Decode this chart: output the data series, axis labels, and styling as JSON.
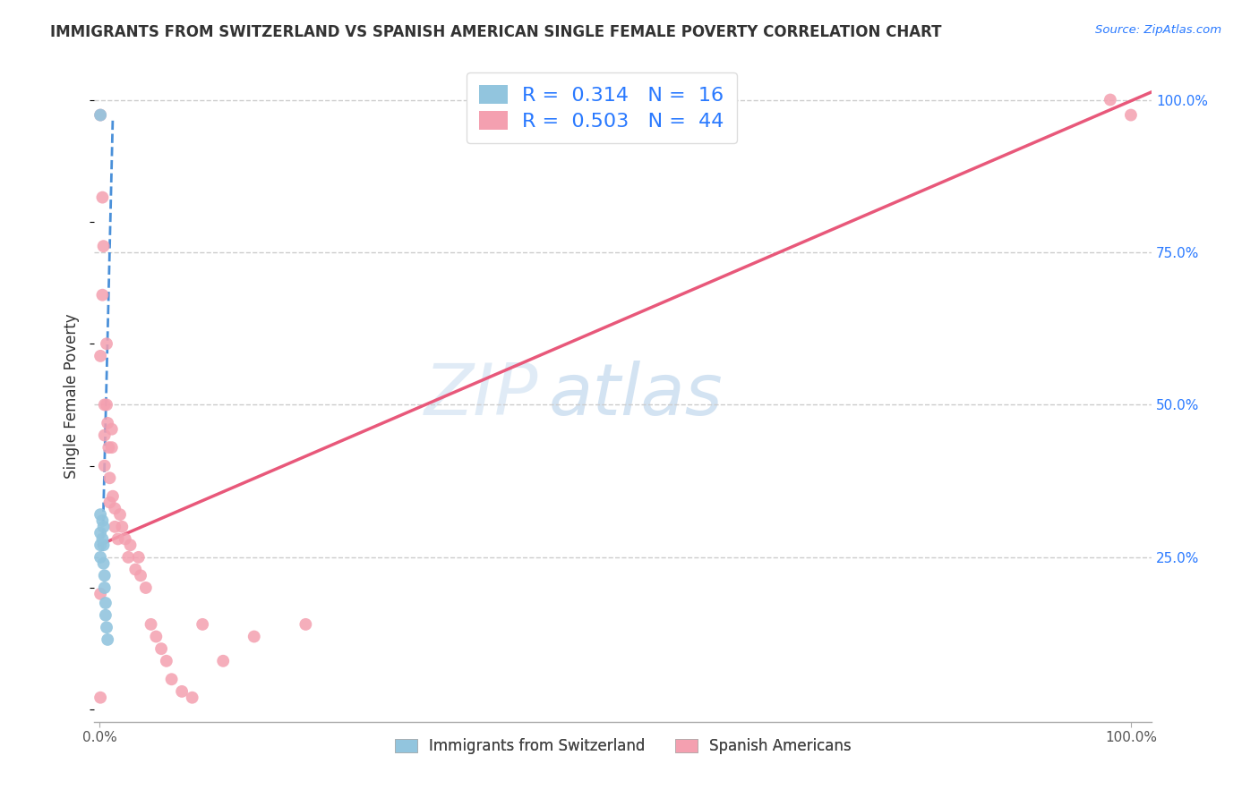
{
  "title": "IMMIGRANTS FROM SWITZERLAND VS SPANISH AMERICAN SINGLE FEMALE POVERTY CORRELATION CHART",
  "source": "Source: ZipAtlas.com",
  "ylabel": "Single Female Poverty",
  "watermark_zip": "ZIP",
  "watermark_atlas": "atlas",
  "xlim": [
    0.0,
    1.0
  ],
  "ylim": [
    0.0,
    1.0
  ],
  "swiss_color": "#92C5DE",
  "spanish_color": "#F4A0B0",
  "swiss_line_color": "#4A90D9",
  "spanish_line_color": "#E8587A",
  "swiss_R": 0.314,
  "swiss_N": 16,
  "spanish_R": 0.503,
  "spanish_N": 44,
  "background_color": "#FFFFFF",
  "grid_color": "#CCCCCC",
  "label_color": "#2979FF",
  "title_color": "#333333",
  "swiss_line_x": [
    0.003,
    0.012
  ],
  "swiss_line_y": [
    0.28,
    0.95
  ],
  "spanish_line_x": [
    0.0,
    1.0
  ],
  "spanish_line_y": [
    0.28,
    1.0
  ],
  "swiss_scatter_x": [
    0.001,
    0.001,
    0.001,
    0.001,
    0.001,
    0.003,
    0.003,
    0.004,
    0.004,
    0.004,
    0.005,
    0.005,
    0.006,
    0.006,
    0.007,
    0.008
  ],
  "swiss_scatter_y": [
    0.975,
    0.32,
    0.29,
    0.27,
    0.25,
    0.31,
    0.28,
    0.3,
    0.27,
    0.24,
    0.22,
    0.2,
    0.175,
    0.155,
    0.135,
    0.115
  ],
  "spanish_scatter_x": [
    0.001,
    0.001,
    0.001,
    0.003,
    0.003,
    0.004,
    0.005,
    0.005,
    0.005,
    0.007,
    0.007,
    0.008,
    0.009,
    0.01,
    0.01,
    0.012,
    0.012,
    0.013,
    0.015,
    0.015,
    0.018,
    0.02,
    0.022,
    0.025,
    0.028,
    0.03,
    0.035,
    0.038,
    0.04,
    0.045,
    0.05,
    0.055,
    0.06,
    0.065,
    0.07,
    0.08,
    0.09,
    0.1,
    0.12,
    0.15,
    0.2,
    0.98,
    1.0,
    0.001
  ],
  "spanish_scatter_y": [
    0.975,
    0.58,
    0.02,
    0.84,
    0.68,
    0.76,
    0.5,
    0.45,
    0.4,
    0.6,
    0.5,
    0.47,
    0.43,
    0.38,
    0.34,
    0.46,
    0.43,
    0.35,
    0.33,
    0.3,
    0.28,
    0.32,
    0.3,
    0.28,
    0.25,
    0.27,
    0.23,
    0.25,
    0.22,
    0.2,
    0.14,
    0.12,
    0.1,
    0.08,
    0.05,
    0.03,
    0.02,
    0.14,
    0.08,
    0.12,
    0.14,
    1.0,
    0.975,
    0.19
  ]
}
